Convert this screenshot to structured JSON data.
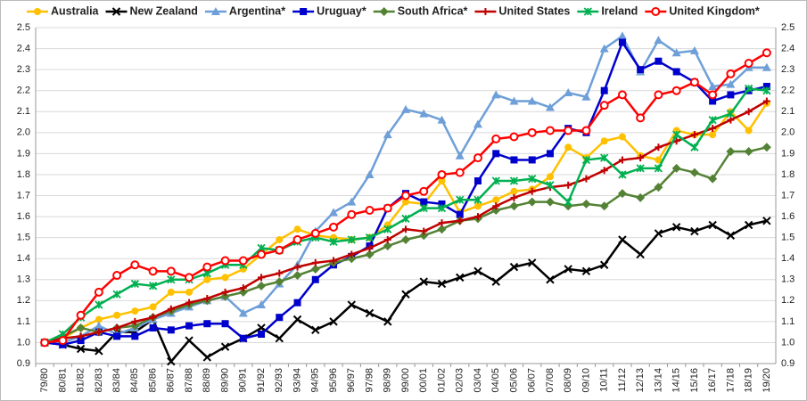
{
  "chart_data": {
    "type": "line",
    "categories": [
      "79/80",
      "80/81",
      "81/82",
      "82/83",
      "83/84",
      "84/85",
      "85/86",
      "86/87",
      "87/88",
      "88/89",
      "89/90",
      "90/91",
      "91/92",
      "92/93",
      "93/94",
      "94/95",
      "95/96",
      "96/97",
      "97/98",
      "98/99",
      "99/00",
      "00/01",
      "01/02",
      "02/03",
      "03/04",
      "04/05",
      "05/06",
      "06/07",
      "07/08",
      "08/09",
      "09/10",
      "10/11",
      "11/12",
      "12/13",
      "13/14",
      "14/15",
      "15/16",
      "16/17",
      "17/18",
      "18/19",
      "19/20"
    ],
    "ylim": [
      0.9,
      2.5
    ],
    "yticks": [
      0.9,
      {
        "value": 1,
        "label": "1.0"
      },
      1.1,
      1.2,
      1.3,
      1.4,
      1.5,
      1.6,
      1.7,
      1.8,
      1.9,
      {
        "value": 2,
        "label": "2.0"
      },
      2.1,
      2.2,
      2.3,
      2.4,
      2.5
    ],
    "grid": true,
    "legend": "top",
    "series": [
      {
        "name": "Australia",
        "color": "#FFC000",
        "marker": "circle",
        "values": [
          1.0,
          1.02,
          1.07,
          1.11,
          1.13,
          1.15,
          1.17,
          1.24,
          1.24,
          1.3,
          1.31,
          1.35,
          1.42,
          1.49,
          1.54,
          1.51,
          1.5,
          1.49,
          1.5,
          1.56,
          1.67,
          1.66,
          1.77,
          1.62,
          1.65,
          1.68,
          1.72,
          1.73,
          1.79,
          1.93,
          1.88,
          1.96,
          1.98,
          1.89,
          1.87,
          2.01,
          1.99,
          1.99,
          2.1,
          2.01,
          2.14
        ]
      },
      {
        "name": "New Zealand",
        "color": "#000000",
        "marker": "cross",
        "values": [
          1.0,
          0.99,
          0.97,
          0.96,
          1.05,
          1.05,
          1.11,
          0.91,
          1.01,
          0.93,
          0.98,
          1.02,
          1.07,
          1.02,
          1.11,
          1.06,
          1.1,
          1.18,
          1.14,
          1.1,
          1.23,
          1.29,
          1.28,
          1.31,
          1.34,
          1.29,
          1.36,
          1.38,
          1.3,
          1.35,
          1.34,
          1.37,
          1.49,
          1.42,
          1.52,
          1.55,
          1.53,
          1.56,
          1.51,
          1.56,
          1.58
        ]
      },
      {
        "name": "Argentina*",
        "color": "#6E9FD8",
        "marker": "triangle",
        "values": [
          1.0,
          1.0,
          1.03,
          1.08,
          1.04,
          1.07,
          1.11,
          1.14,
          1.17,
          1.2,
          1.22,
          1.14,
          1.18,
          1.28,
          1.37,
          1.53,
          1.62,
          1.67,
          1.8,
          1.99,
          2.11,
          2.09,
          2.06,
          1.89,
          2.04,
          2.18,
          2.15,
          2.15,
          2.12,
          2.19,
          2.17,
          2.4,
          2.46,
          2.29,
          2.44,
          2.38,
          2.39,
          2.22,
          2.23,
          2.31,
          2.31
        ]
      },
      {
        "name": "Uruguay*",
        "color": "#0000CC",
        "marker": "square",
        "values": [
          1.0,
          0.99,
          1.01,
          1.05,
          1.03,
          1.03,
          1.07,
          1.06,
          1.08,
          1.09,
          1.09,
          1.02,
          1.04,
          1.12,
          1.19,
          1.3,
          1.37,
          1.41,
          1.46,
          1.64,
          1.71,
          1.67,
          1.66,
          1.61,
          1.77,
          1.9,
          1.87,
          1.87,
          1.9,
          2.02,
          2.0,
          2.2,
          2.43,
          2.3,
          2.34,
          2.29,
          2.24,
          2.15,
          2.18,
          2.2,
          2.22
        ]
      },
      {
        "name": "South Africa*",
        "color": "#548235",
        "marker": "diamond",
        "values": [
          1.0,
          1.03,
          1.07,
          1.05,
          1.07,
          1.08,
          1.12,
          1.15,
          1.18,
          1.2,
          1.22,
          1.24,
          1.27,
          1.29,
          1.32,
          1.35,
          1.38,
          1.4,
          1.42,
          1.46,
          1.49,
          1.51,
          1.54,
          1.58,
          1.59,
          1.63,
          1.65,
          1.67,
          1.67,
          1.65,
          1.66,
          1.65,
          1.71,
          1.69,
          1.74,
          1.83,
          1.81,
          1.78,
          1.91,
          1.91,
          1.93
        ]
      },
      {
        "name": "United States",
        "color": "#C00000",
        "marker": "plus",
        "values": [
          1.0,
          1.02,
          1.03,
          1.05,
          1.07,
          1.1,
          1.12,
          1.16,
          1.19,
          1.21,
          1.24,
          1.26,
          1.31,
          1.33,
          1.36,
          1.38,
          1.39,
          1.42,
          1.45,
          1.49,
          1.54,
          1.53,
          1.57,
          1.58,
          1.6,
          1.65,
          1.69,
          1.72,
          1.74,
          1.75,
          1.78,
          1.82,
          1.87,
          1.88,
          1.93,
          1.96,
          1.99,
          2.02,
          2.06,
          2.1,
          2.15
        ]
      },
      {
        "name": "Ireland",
        "color": "#00B050",
        "marker": "star",
        "values": [
          1.0,
          1.04,
          1.12,
          1.18,
          1.23,
          1.28,
          1.27,
          1.3,
          1.3,
          1.33,
          1.37,
          1.37,
          1.45,
          1.44,
          1.48,
          1.5,
          1.48,
          1.49,
          1.5,
          1.54,
          1.59,
          1.64,
          1.64,
          1.68,
          1.68,
          1.77,
          1.77,
          1.78,
          1.75,
          1.67,
          1.87,
          1.88,
          1.8,
          1.83,
          1.83,
          1.99,
          1.93,
          2.06,
          2.09,
          2.21,
          2.2
        ]
      },
      {
        "name": "United Kingdom*",
        "color": "#FF0000",
        "marker": "open-circle",
        "values": [
          1.0,
          1.01,
          1.13,
          1.24,
          1.32,
          1.37,
          1.34,
          1.34,
          1.31,
          1.36,
          1.39,
          1.39,
          1.42,
          1.44,
          1.49,
          1.52,
          1.55,
          1.61,
          1.63,
          1.64,
          1.7,
          1.72,
          1.8,
          1.81,
          1.88,
          1.97,
          1.98,
          2.0,
          2.01,
          2.01,
          2.01,
          2.13,
          2.18,
          2.07,
          2.18,
          2.2,
          2.24,
          2.18,
          2.28,
          2.33,
          2.38
        ]
      }
    ]
  }
}
